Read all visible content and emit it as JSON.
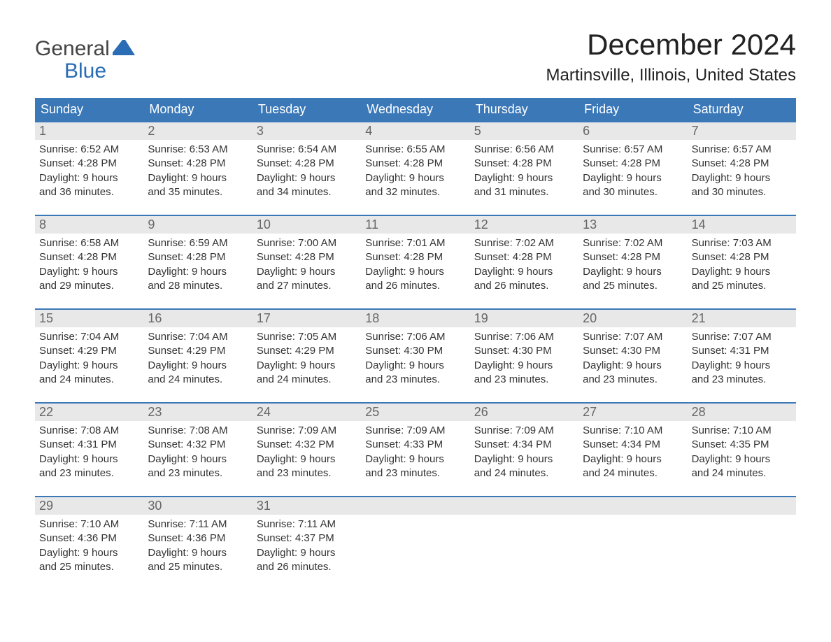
{
  "logo": {
    "line1": "General",
    "line2": "Blue",
    "shape_color": "#2a6db5",
    "text_color_gray": "#444444",
    "text_color_blue": "#2a6db5"
  },
  "title": "December 2024",
  "location": "Martinsville, Illinois, United States",
  "colors": {
    "header_bg": "#3a78b8",
    "header_text": "#ffffff",
    "daynum_bg": "#e8e8e8",
    "daynum_text": "#666666",
    "body_text": "#333333",
    "week_border": "#3a78b8",
    "background": "#ffffff"
  },
  "day_names": [
    "Sunday",
    "Monday",
    "Tuesday",
    "Wednesday",
    "Thursday",
    "Friday",
    "Saturday"
  ],
  "weeks": [
    [
      {
        "n": "1",
        "sunrise": "6:52 AM",
        "sunset": "4:28 PM",
        "dh": "9",
        "dm": "36"
      },
      {
        "n": "2",
        "sunrise": "6:53 AM",
        "sunset": "4:28 PM",
        "dh": "9",
        "dm": "35"
      },
      {
        "n": "3",
        "sunrise": "6:54 AM",
        "sunset": "4:28 PM",
        "dh": "9",
        "dm": "34"
      },
      {
        "n": "4",
        "sunrise": "6:55 AM",
        "sunset": "4:28 PM",
        "dh": "9",
        "dm": "32"
      },
      {
        "n": "5",
        "sunrise": "6:56 AM",
        "sunset": "4:28 PM",
        "dh": "9",
        "dm": "31"
      },
      {
        "n": "6",
        "sunrise": "6:57 AM",
        "sunset": "4:28 PM",
        "dh": "9",
        "dm": "30"
      },
      {
        "n": "7",
        "sunrise": "6:57 AM",
        "sunset": "4:28 PM",
        "dh": "9",
        "dm": "30"
      }
    ],
    [
      {
        "n": "8",
        "sunrise": "6:58 AM",
        "sunset": "4:28 PM",
        "dh": "9",
        "dm": "29"
      },
      {
        "n": "9",
        "sunrise": "6:59 AM",
        "sunset": "4:28 PM",
        "dh": "9",
        "dm": "28"
      },
      {
        "n": "10",
        "sunrise": "7:00 AM",
        "sunset": "4:28 PM",
        "dh": "9",
        "dm": "27"
      },
      {
        "n": "11",
        "sunrise": "7:01 AM",
        "sunset": "4:28 PM",
        "dh": "9",
        "dm": "26"
      },
      {
        "n": "12",
        "sunrise": "7:02 AM",
        "sunset": "4:28 PM",
        "dh": "9",
        "dm": "26"
      },
      {
        "n": "13",
        "sunrise": "7:02 AM",
        "sunset": "4:28 PM",
        "dh": "9",
        "dm": "25"
      },
      {
        "n": "14",
        "sunrise": "7:03 AM",
        "sunset": "4:28 PM",
        "dh": "9",
        "dm": "25"
      }
    ],
    [
      {
        "n": "15",
        "sunrise": "7:04 AM",
        "sunset": "4:29 PM",
        "dh": "9",
        "dm": "24"
      },
      {
        "n": "16",
        "sunrise": "7:04 AM",
        "sunset": "4:29 PM",
        "dh": "9",
        "dm": "24"
      },
      {
        "n": "17",
        "sunrise": "7:05 AM",
        "sunset": "4:29 PM",
        "dh": "9",
        "dm": "24"
      },
      {
        "n": "18",
        "sunrise": "7:06 AM",
        "sunset": "4:30 PM",
        "dh": "9",
        "dm": "23"
      },
      {
        "n": "19",
        "sunrise": "7:06 AM",
        "sunset": "4:30 PM",
        "dh": "9",
        "dm": "23"
      },
      {
        "n": "20",
        "sunrise": "7:07 AM",
        "sunset": "4:30 PM",
        "dh": "9",
        "dm": "23"
      },
      {
        "n": "21",
        "sunrise": "7:07 AM",
        "sunset": "4:31 PM",
        "dh": "9",
        "dm": "23"
      }
    ],
    [
      {
        "n": "22",
        "sunrise": "7:08 AM",
        "sunset": "4:31 PM",
        "dh": "9",
        "dm": "23"
      },
      {
        "n": "23",
        "sunrise": "7:08 AM",
        "sunset": "4:32 PM",
        "dh": "9",
        "dm": "23"
      },
      {
        "n": "24",
        "sunrise": "7:09 AM",
        "sunset": "4:32 PM",
        "dh": "9",
        "dm": "23"
      },
      {
        "n": "25",
        "sunrise": "7:09 AM",
        "sunset": "4:33 PM",
        "dh": "9",
        "dm": "23"
      },
      {
        "n": "26",
        "sunrise": "7:09 AM",
        "sunset": "4:34 PM",
        "dh": "9",
        "dm": "24"
      },
      {
        "n": "27",
        "sunrise": "7:10 AM",
        "sunset": "4:34 PM",
        "dh": "9",
        "dm": "24"
      },
      {
        "n": "28",
        "sunrise": "7:10 AM",
        "sunset": "4:35 PM",
        "dh": "9",
        "dm": "24"
      }
    ],
    [
      {
        "n": "29",
        "sunrise": "7:10 AM",
        "sunset": "4:36 PM",
        "dh": "9",
        "dm": "25"
      },
      {
        "n": "30",
        "sunrise": "7:11 AM",
        "sunset": "4:36 PM",
        "dh": "9",
        "dm": "25"
      },
      {
        "n": "31",
        "sunrise": "7:11 AM",
        "sunset": "4:37 PM",
        "dh": "9",
        "dm": "26"
      },
      null,
      null,
      null,
      null
    ]
  ],
  "labels": {
    "sunrise": "Sunrise:",
    "sunset": "Sunset:",
    "daylight1": "Daylight:",
    "hours_suffix": "hours",
    "and": "and",
    "minutes_suffix": "minutes."
  }
}
